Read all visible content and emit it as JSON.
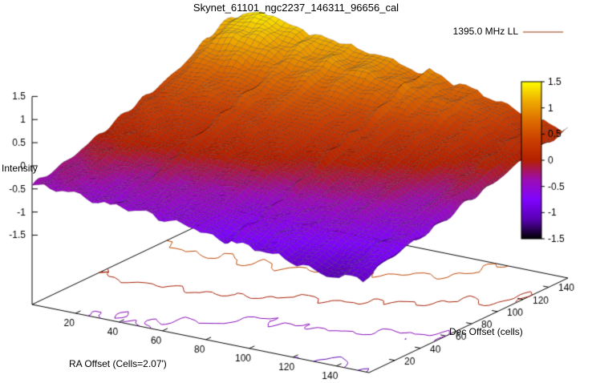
{
  "title": "Skynet_61101_ngc2237_146311_96656_cal",
  "legend": {
    "label": "1395.0 MHz LL",
    "line_color": "#8b2e00"
  },
  "chart_data": {
    "type": "surface3d",
    "title": "Skynet_61101_ngc2237_146311_96656_cal",
    "xlabel": "RA Offset (Cells=2.07')",
    "ylabel": "Dec Offset (cells)",
    "zlabel": "Intensity",
    "x_range": [
      0,
      155
    ],
    "y_range": [
      0,
      155
    ],
    "z_range": [
      -1.5,
      1.5
    ],
    "x_ticks": [
      20,
      40,
      60,
      80,
      100,
      120,
      140
    ],
    "y_ticks": [
      20,
      40,
      60,
      80,
      100,
      120,
      140
    ],
    "z_ticks": [
      -1.5,
      -1,
      -0.5,
      0,
      0.5,
      1,
      1.5
    ],
    "colorbar": {
      "range": [
        -1.5,
        1.5
      ],
      "ticks": [
        1.5,
        1,
        0.5,
        0,
        -0.5,
        -1,
        -1.5
      ]
    },
    "palette_stops": [
      "#000000",
      "#5a00b4",
      "#8004ff",
      "#9c0db4",
      "#b42000",
      "#ca3e00",
      "#dd6c00",
      "#efab00",
      "#ffff00"
    ],
    "contour_levels": [
      0.5,
      0,
      -0.5,
      -1
    ],
    "surface_grid": {
      "note": "estimated intensity heights read from the surface colors; rows front(y=0) to back(y=155), cols left(x=0) to right(x=155)",
      "values": [
        [
          -0.4,
          -0.45,
          -0.5,
          -0.6,
          -0.7,
          -0.8,
          -0.9,
          -1.05,
          -0.95
        ],
        [
          -0.3,
          -0.35,
          -0.4,
          -0.5,
          -0.6,
          -0.65,
          -0.7,
          -0.8,
          -0.75
        ],
        [
          -0.15,
          -0.15,
          -0.2,
          -0.3,
          -0.4,
          -0.45,
          -0.5,
          -0.6,
          -0.65
        ],
        [
          0.05,
          0.1,
          0.05,
          0.0,
          -0.1,
          -0.2,
          -0.3,
          -0.4,
          -0.5
        ],
        [
          0.25,
          0.3,
          0.3,
          0.25,
          0.15,
          0.05,
          -0.1,
          -0.25,
          -0.35
        ],
        [
          0.45,
          0.5,
          0.5,
          0.45,
          0.35,
          0.25,
          0.1,
          -0.05,
          -0.2
        ],
        [
          0.65,
          0.7,
          0.7,
          0.65,
          0.55,
          0.45,
          0.3,
          0.15,
          -0.05
        ],
        [
          1.0,
          1.2,
          1.0,
          0.9,
          0.85,
          0.75,
          0.55,
          0.3,
          0.05
        ],
        [
          1.2,
          1.4,
          1.2,
          1.0,
          0.9,
          0.8,
          0.6,
          0.4,
          0.15
        ]
      ]
    }
  }
}
